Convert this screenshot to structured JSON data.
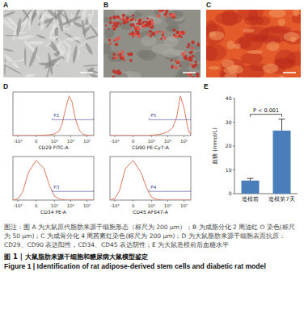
{
  "panel_labels": [
    "A",
    "B",
    "C",
    "D",
    "E"
  ],
  "images": [
    {
      "label": "A"
    },
    {
      "label": "B"
    },
    {
      "label": "C"
    }
  ],
  "chart_data": [
    {
      "type": "line",
      "xlabel": "CD29 FITC-A",
      "color": "#e0775c",
      "x": [
        -2000,
        -1000,
        -500,
        -200,
        0,
        200,
        500,
        1000,
        2000,
        3000,
        5000,
        8000,
        12000,
        20000,
        35000,
        60000,
        100000,
        180000,
        262144
      ],
      "values": [
        0,
        0,
        0,
        0,
        0,
        1,
        2,
        4,
        12,
        30,
        70,
        100,
        85,
        40,
        12,
        3,
        1,
        0,
        0
      ],
      "xlim": [
        -2000,
        262144
      ],
      "ylim": [
        0,
        110
      ],
      "xticks": [
        {
          "value": -1000,
          "label": "-10³"
        },
        0,
        {
          "value": 1000,
          "label": "10³"
        },
        {
          "value": 10000,
          "label": "10⁴"
        },
        {
          "value": 100000,
          "label": "10⁵"
        }
      ],
      "tick_labels": "x",
      "gate": {
        "label": "P2",
        "range": [
          700,
          262144
        ],
        "level": 40
      }
    },
    {
      "type": "line",
      "xlabel": "CD90 PE-Cy7-A",
      "color": "#e0775c",
      "x": [
        -2000,
        -1000,
        -500,
        -200,
        0,
        200,
        500,
        1000,
        2000,
        3000,
        5000,
        8000,
        12000,
        20000,
        35000,
        60000,
        100000,
        180000,
        262144
      ],
      "values": [
        0,
        0,
        0,
        0,
        0,
        0,
        0,
        1,
        2,
        3,
        5,
        8,
        12,
        20,
        45,
        100,
        70,
        15,
        2
      ],
      "xlim": [
        -2000,
        262144
      ],
      "ylim": [
        0,
        110
      ],
      "xticks": [
        {
          "value": -1000,
          "label": "-10³"
        },
        0,
        {
          "value": 1000,
          "label": "10³"
        },
        {
          "value": 10000,
          "label": "10⁴"
        },
        {
          "value": 100000,
          "label": "10⁵"
        }
      ],
      "tick_labels": "x",
      "gate": {
        "label": "P5",
        "range": [
          700,
          262144
        ],
        "level": 40
      }
    },
    {
      "type": "line",
      "xlabel": "CD34 PE-A",
      "color": "#e0775c",
      "x": [
        -2000,
        -1000,
        -500,
        -200,
        0,
        200,
        500,
        1000,
        2000,
        3000,
        5000,
        8000,
        12000,
        20000,
        35000,
        60000,
        100000,
        180000,
        262144
      ],
      "values": [
        0,
        3,
        20,
        70,
        100,
        80,
        35,
        10,
        3,
        1,
        0,
        0,
        0,
        0,
        0,
        0,
        0,
        0,
        0
      ],
      "xlim": [
        -2000,
        262144
      ],
      "ylim": [
        0,
        110
      ],
      "xticks": [
        {
          "value": -1000,
          "label": "-10³"
        },
        0,
        {
          "value": 1000,
          "label": "10³"
        },
        {
          "value": 10000,
          "label": "10⁴"
        },
        {
          "value": 100000,
          "label": "10⁵"
        }
      ],
      "tick_labels": "x",
      "gate": {
        "label": "P3",
        "range": [
          700,
          262144
        ],
        "level": 22
      }
    },
    {
      "type": "line",
      "xlabel": "CD45 AF647-A",
      "color": "#e0775c",
      "x": [
        -2000,
        -1000,
        -500,
        -200,
        0,
        200,
        500,
        1000,
        2000,
        3000,
        5000,
        8000,
        12000,
        20000,
        35000,
        60000,
        100000,
        180000,
        262144
      ],
      "values": [
        0,
        4,
        25,
        80,
        100,
        70,
        30,
        8,
        2,
        1,
        0,
        0,
        0,
        0,
        0,
        0,
        0,
        0,
        0
      ],
      "xlim": [
        -2000,
        262144
      ],
      "ylim": [
        0,
        110
      ],
      "xticks": [
        {
          "value": -1000,
          "label": "-10³"
        },
        0,
        {
          "value": 1000,
          "label": "10³"
        },
        {
          "value": 10000,
          "label": "10⁴"
        },
        {
          "value": 100000,
          "label": "10⁵"
        }
      ],
      "tick_labels": "x",
      "gate": {
        "label": "P4",
        "range": [
          700,
          262144
        ],
        "level": 22
      }
    },
    {
      "type": "bar",
      "ylabel": "血糖 (mmol/L)",
      "color": "#4a7ebb",
      "categories": [
        "造模前",
        "造模第7天"
      ],
      "values": [
        5.5,
        26.5
      ],
      "errors": [
        0.9,
        4.8
      ],
      "ylim": [
        0,
        40
      ],
      "yticks": [
        0,
        10,
        20,
        30,
        40
      ],
      "annotation": "P < 0.001"
    }
  ],
  "caption": "图注：图 A 为大鼠原代脂肪来源干细胞形态（标尺为 200 μm）；B 为成脂分化 2 周油红 O 染色(标尺为 50 μm)；C 为成骨分化 4 周茜素红染色(标尺为 200 μm)；D 为大鼠脂肪来源干细胞表面抗原：CD29、CD90 表达阳性，CD34、CD45 表达阴性；E 为大鼠造模前后血糖水平",
  "figure_title": {
    "zh": "图 1 | 大鼠脂肪来源干细胞和糖尿病大鼠模型鉴定",
    "en": "Figure 1 | Identification of rat adipose-derived stem cells and diabetic rat model"
  }
}
